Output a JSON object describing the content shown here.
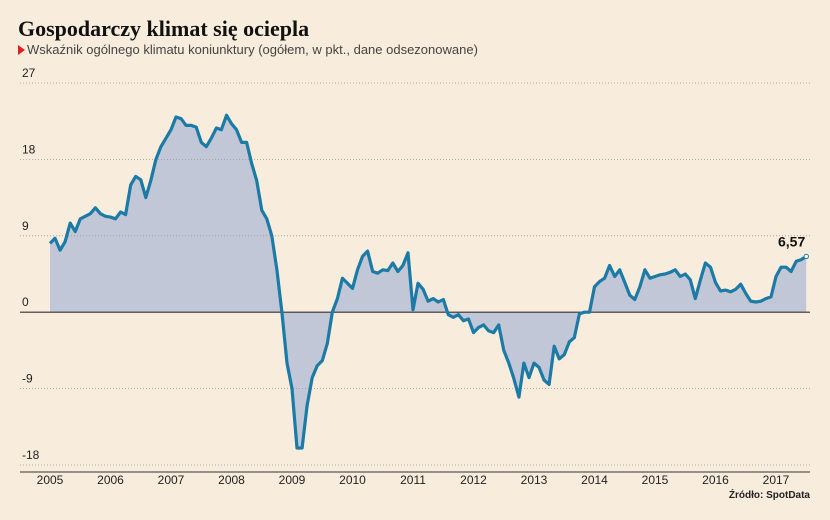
{
  "chart_data": {
    "type": "area",
    "title": "Gospodarczy klimat się ociepla",
    "subtitle": "Wskaźnik ogólnego klimatu koniunktury (ogółem, w pkt., dane odsezonowane)",
    "source": "Źródło: SpotData",
    "categories": [
      "2005",
      null,
      null,
      null,
      null,
      null,
      null,
      null,
      null,
      null,
      null,
      null,
      "2006",
      null,
      null,
      null,
      null,
      null,
      null,
      null,
      null,
      null,
      null,
      null,
      "2007",
      null,
      null,
      null,
      null,
      null,
      null,
      null,
      null,
      null,
      null,
      null,
      "2008",
      null,
      null,
      null,
      null,
      null,
      null,
      null,
      null,
      null,
      null,
      null,
      "2009",
      null,
      null,
      null,
      null,
      null,
      null,
      null,
      null,
      null,
      null,
      null,
      "2010",
      null,
      null,
      null,
      null,
      null,
      null,
      null,
      null,
      null,
      null,
      null,
      "2011",
      null,
      null,
      null,
      null,
      null,
      null,
      null,
      null,
      null,
      null,
      null,
      "2012",
      null,
      null,
      null,
      null,
      null,
      null,
      null,
      null,
      null,
      null,
      null,
      "2013",
      null,
      null,
      null,
      null,
      null,
      null,
      null,
      null,
      null,
      null,
      null,
      "2014",
      null,
      null,
      null,
      null,
      null,
      null,
      null,
      null,
      null,
      null,
      null,
      "2015",
      null,
      null,
      null,
      null,
      null,
      null,
      null,
      null,
      null,
      null,
      null,
      "2016",
      null,
      null,
      null,
      null,
      null,
      null,
      null,
      null,
      null,
      null,
      null,
      "2017",
      null,
      null,
      null,
      null,
      null,
      null
    ],
    "values": [
      8.1,
      8.7,
      7.3,
      8.3,
      10.5,
      9.5,
      11,
      11.3,
      11.6,
      12.3,
      11.6,
      11.3,
      11.2,
      11,
      11.8,
      11.5,
      15,
      16,
      15.6,
      13.5,
      15.5,
      18,
      19.5,
      20.5,
      21.5,
      23,
      22.8,
      22,
      22,
      21.8,
      20,
      19.5,
      20.5,
      21.7,
      21.5,
      23.2,
      22.2,
      21.5,
      20,
      20,
      17.5,
      15.5,
      12,
      11,
      9,
      5,
      0,
      -6,
      -9,
      -16,
      -16,
      -11,
      -7.7,
      -6.3,
      -5.7,
      -3.7,
      0,
      1.6,
      4,
      3.4,
      2.8,
      5,
      6.6,
      7.2,
      4.8,
      4.6,
      5,
      4.9,
      5.8,
      4.8,
      5.5,
      7,
      0.3,
      3.4,
      2.7,
      1.3,
      1.6,
      1.2,
      1.5,
      -0.3,
      -0.6,
      -0.3,
      -1,
      -0.8,
      -2.4,
      -1.8,
      -1.5,
      -2.2,
      -2.4,
      -1.5,
      -4.5,
      -6,
      -7.8,
      -10,
      -6,
      -7.7,
      -6,
      -6.5,
      -8,
      -8.5,
      -4,
      -5.5,
      -5,
      -3.5,
      -3,
      -0.2,
      0,
      0,
      3,
      3.6,
      4,
      5.5,
      4.2,
      5,
      3.5,
      2,
      1.5,
      3,
      5,
      4,
      4.2,
      4.4,
      4.5,
      4.7,
      5,
      4.2,
      4.5,
      3.8,
      1.6,
      3.8,
      5.8,
      5.3,
      3.5,
      2.5,
      2.6,
      2.4,
      2.7,
      3.3,
      2.2,
      1.3,
      1.2,
      1.3,
      1.6,
      1.8,
      4.2,
      5.3,
      5.3,
      4.8,
      6,
      6.2,
      6.57
    ],
    "value_labels": [
      null,
      null,
      null,
      null,
      null,
      null,
      null,
      null,
      null,
      null,
      null,
      null,
      null,
      null,
      null,
      null,
      null,
      null,
      null,
      null,
      null,
      null,
      null,
      null,
      null,
      null,
      null,
      null,
      null,
      null,
      null,
      null,
      null,
      null,
      null,
      null,
      null,
      null,
      null,
      null,
      null,
      null,
      null,
      null,
      null,
      null,
      null,
      null,
      null,
      null,
      null,
      null,
      null,
      null,
      null,
      null,
      null,
      null,
      null,
      null,
      null,
      null,
      null,
      null,
      null,
      null,
      null,
      null,
      null,
      null,
      null,
      null,
      null,
      null,
      null,
      null,
      null,
      null,
      null,
      null,
      null,
      null,
      null,
      null,
      null,
      null,
      null,
      null,
      null,
      null,
      null,
      null,
      null,
      null,
      null,
      null,
      null,
      null,
      null,
      null,
      null,
      null,
      null,
      null,
      null,
      null,
      null,
      null,
      null,
      null,
      null,
      null,
      null,
      null,
      null,
      null,
      null,
      null,
      null,
      null,
      null,
      null,
      null,
      null,
      null,
      null,
      null,
      null,
      null,
      null,
      null,
      null,
      null,
      null,
      null,
      null,
      null,
      null,
      null,
      null,
      null,
      null,
      null,
      null,
      null,
      null,
      null,
      null,
      null,
      null,
      "6,57"
    ],
    "color": "#1b7aa6",
    "fill_color": "#c1c7d7",
    "ylim": [
      -18,
      27
    ],
    "yticks": [
      27,
      18,
      9,
      0,
      -9,
      -18
    ],
    "grid": true
  }
}
